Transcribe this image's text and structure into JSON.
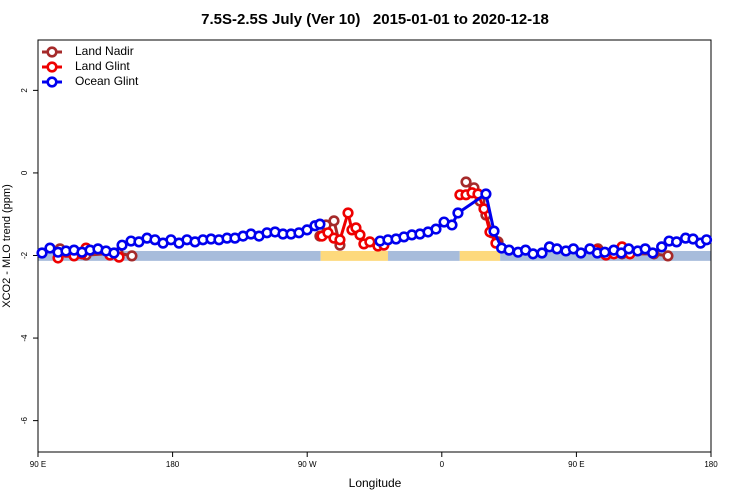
{
  "chart_data": {
    "type": "line",
    "title": "7.5S-2.5S July (Ver 10)   2015-01-01 to 2020-12-18",
    "x_label": "Longitude",
    "y_label": "XCO2 - MLO trend (ppm)",
    "xlim": [
      90,
      540
    ],
    "ylim": [
      -6.76,
      3.22
    ],
    "xticks": [
      {
        "value": 90,
        "label": "90 E"
      },
      {
        "value": 180,
        "label": "180"
      },
      {
        "value": 270,
        "label": "90 W"
      },
      {
        "value": 360,
        "label": "0"
      },
      {
        "value": 450,
        "label": "90 E"
      },
      {
        "value": 540,
        "label": "180"
      }
    ],
    "yticks": [
      2,
      0,
      -2,
      -4,
      -6
    ],
    "legend": "top-left",
    "bands": {
      "y": [
        -1.89,
        -2.13
      ],
      "segments": [
        {
          "x": [
            90,
            279
          ],
          "color": "#a7bcdb"
        },
        {
          "x": [
            279,
            324
          ],
          "color": "#fdd97c"
        },
        {
          "x": [
            324,
            372
          ],
          "color": "#a7bcdb"
        },
        {
          "x": [
            372,
            399
          ],
          "color": "#fdd97c"
        },
        {
          "x": [
            399,
            540
          ],
          "color": "#a7bcdb"
        }
      ]
    },
    "series": [
      {
        "name": "Land Nadir",
        "color": "#a52a2a",
        "x": [
          104.7,
          110.1,
          122.1,
          143.5,
          152.8,
          null,
          278.5,
          282.6,
          287.9,
          291.9,
          null,
          376.2,
          381.5,
          385.5,
          389.5,
          393.5,
          397.6,
          null,
          464.4,
          480.5,
          501.9,
          511.2
        ],
        "values": [
          -1.84,
          -1.92,
          -1.99,
          -1.94,
          -2.01,
          null,
          -1.53,
          -1.26,
          -1.16,
          -1.75,
          null,
          -0.22,
          -0.36,
          -0.68,
          -1.02,
          -1.45,
          -1.67,
          null,
          -1.84,
          -1.96,
          -1.96,
          -2.01
        ]
      },
      {
        "name": "Land Glint",
        "color": "#ee0000",
        "x": [
          103.4,
          108.7,
          114.1,
          119.4,
          122.1,
          138.1,
          144.2,
          null,
          279.9,
          283.9,
          287.9,
          291.9,
          297.3,
          299.9,
          302.6,
          305.3,
          307.9,
          311.9,
          317.3,
          321.3,
          null,
          372.1,
          376.2,
          380.2,
          384.2,
          388.2,
          392.2,
          396.2,
          null,
          463.1,
          469.8,
          475.1,
          480.5,
          485.8
        ],
        "values": [
          -2.06,
          -1.92,
          -2.01,
          -1.96,
          -1.82,
          -1.99,
          -2.04,
          null,
          -1.53,
          -1.45,
          -1.58,
          -1.62,
          -0.97,
          -1.38,
          -1.33,
          -1.5,
          -1.72,
          -1.67,
          -1.77,
          -1.75,
          null,
          -0.53,
          -0.53,
          -0.48,
          -0.51,
          -0.87,
          -1.43,
          -1.7,
          null,
          -1.87,
          -1.99,
          -1.96,
          -1.79,
          -1.96
        ]
      },
      {
        "name": "Ocean Glint",
        "color": "#0000ee",
        "x": [
          92.7,
          98,
          103.4,
          108.7,
          114.1,
          119.4,
          124.8,
          130.1,
          135.5,
          140.8,
          146.2,
          152.2,
          157.5,
          162.9,
          168.2,
          173.6,
          178.9,
          184.3,
          189.6,
          195,
          200.3,
          205.7,
          211,
          216.4,
          221.7,
          227.1,
          232.4,
          237.8,
          243.1,
          248.5,
          253.8,
          259.2,
          264.5,
          269.9,
          275.2,
          278.5,
          null,
          318.7,
          324,
          329.4,
          334.7,
          340,
          345.4,
          350.8,
          356.1,
          361.5,
          366.8,
          370.8,
          389.5,
          394.9,
          400,
          405,
          411,
          416,
          421,
          427,
          432,
          437,
          443,
          448,
          453,
          459,
          464,
          469,
          475,
          480,
          485,
          491,
          496,
          501,
          507,
          512,
          517,
          523,
          528,
          533,
          537
        ],
        "values": [
          -1.94,
          -1.82,
          -1.92,
          -1.89,
          -1.87,
          -1.92,
          -1.87,
          -1.84,
          -1.89,
          -1.94,
          -1.75,
          -1.65,
          -1.67,
          -1.58,
          -1.62,
          -1.7,
          -1.62,
          -1.7,
          -1.62,
          -1.67,
          -1.62,
          -1.6,
          -1.62,
          -1.58,
          -1.58,
          -1.53,
          -1.48,
          -1.53,
          -1.45,
          -1.43,
          -1.48,
          -1.48,
          -1.45,
          -1.38,
          -1.28,
          -1.24,
          null,
          -1.65,
          -1.62,
          -1.6,
          -1.55,
          -1.5,
          -1.48,
          -1.43,
          -1.36,
          -1.19,
          -1.26,
          -0.97,
          -0.51,
          -1.41,
          -1.82,
          -1.87,
          -1.92,
          -1.87,
          -1.96,
          -1.94,
          -1.79,
          -1.84,
          -1.89,
          -1.84,
          -1.94,
          -1.84,
          -1.94,
          -1.92,
          -1.87,
          -1.94,
          -1.84,
          -1.89,
          -1.84,
          -1.94,
          -1.79,
          -1.65,
          -1.67,
          -1.58,
          -1.6,
          -1.7,
          -1.62
        ]
      }
    ]
  }
}
